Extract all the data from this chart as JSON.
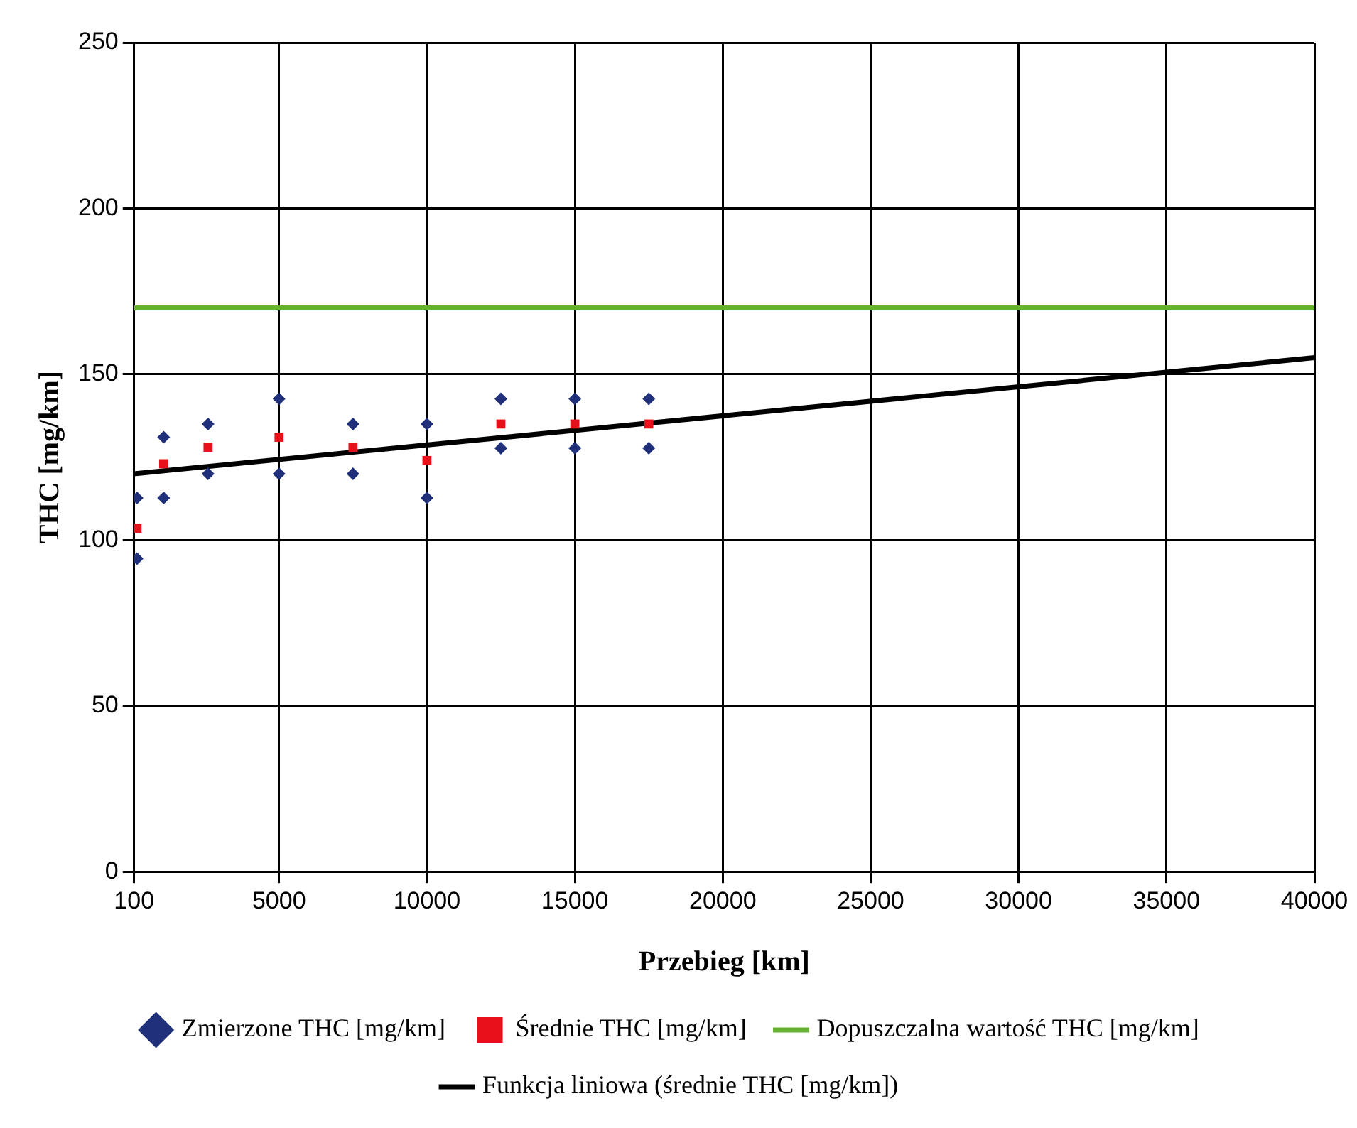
{
  "chart_data": {
    "type": "scatter",
    "xlabel": "Przebieg [km]",
    "ylabel": "THC [mg/km]",
    "xlim": [
      100,
      40000
    ],
    "xticks": [
      100,
      5000,
      10000,
      15000,
      20000,
      25000,
      30000,
      35000,
      40000
    ],
    "ylim": [
      0,
      250
    ],
    "yticks": [
      0,
      50,
      100,
      150,
      200,
      250
    ],
    "grid": true,
    "legend": "bottom",
    "series": [
      {
        "name": "Zmierzone THC [mg/km]",
        "color": "#1f2f7a",
        "marker": "diamond",
        "x": [
          200,
          200,
          1100,
          1100,
          2600,
          2600,
          5000,
          5000,
          7500,
          7500,
          10000,
          10000,
          12500,
          12500,
          15000,
          15000,
          17500,
          17500
        ],
        "values": [
          112.7,
          94.4,
          131,
          112.7,
          135,
          120,
          142.6,
          120,
          135,
          120,
          135,
          112.7,
          142.6,
          127.7,
          142.6,
          127.7,
          142.6,
          127.7
        ]
      },
      {
        "name": "Średnie THC [mg/km]",
        "color": "#e8101a",
        "marker": "square",
        "x": [
          200,
          1100,
          2600,
          5000,
          7500,
          10000,
          12500,
          15000,
          17500
        ],
        "values": [
          103.6,
          123,
          128,
          131,
          128,
          124,
          135,
          135,
          135
        ]
      },
      {
        "name": "Dopuszczalna wartość THC [mg/km]",
        "type": "line",
        "color": "#66b032",
        "marker": "none",
        "x": [
          100,
          40000
        ],
        "values": [
          170,
          170
        ]
      },
      {
        "name": "Funkcja liniowa (średnie THC [mg/km])",
        "type": "line",
        "color": "#000000",
        "marker": "none",
        "x": [
          100,
          40000
        ],
        "values": [
          120,
          155
        ]
      }
    ]
  }
}
